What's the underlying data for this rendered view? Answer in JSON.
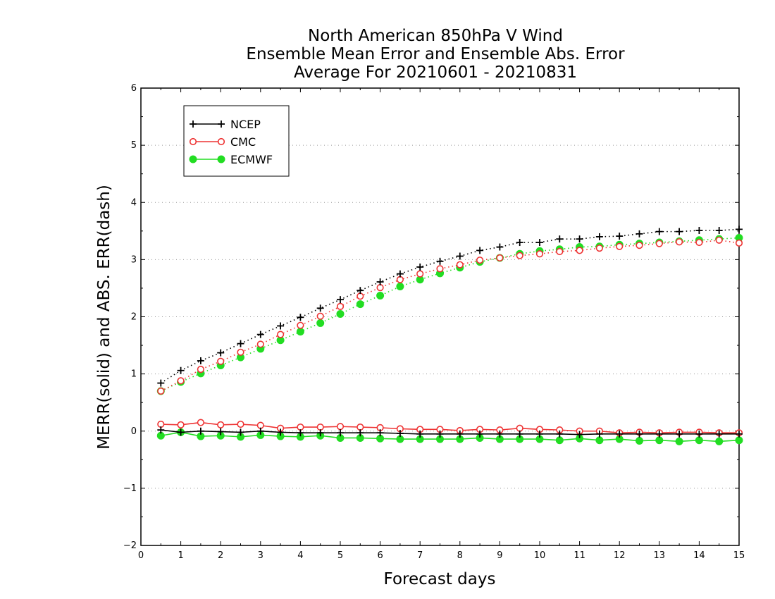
{
  "chart_data": {
    "type": "line",
    "title": [
      "North American 850hPa V Wind",
      "Ensemble Mean Error and Ensemble Abs. Error",
      "Average For 20210601 - 20210831"
    ],
    "xlabel": "Forecast days",
    "ylabel": "MERR(solid) and ABS. ERR(dash)",
    "xlim": [
      0,
      15
    ],
    "ylim": [
      -2,
      6
    ],
    "xticks": [
      "0",
      "1",
      "2",
      "3",
      "4",
      "5",
      "6",
      "7",
      "8",
      "9",
      "10",
      "11",
      "12",
      "13",
      "14",
      "15"
    ],
    "yticks": [
      "−2",
      "−1",
      "0",
      "1",
      "2",
      "3",
      "4",
      "5",
      "6"
    ],
    "grid": "horizontal dotted",
    "legend_placement": "top-left",
    "x": [
      0.5,
      1,
      1.5,
      2,
      2.5,
      3,
      3.5,
      4,
      4.5,
      5,
      5.5,
      6,
      6.5,
      7,
      7.5,
      8,
      8.5,
      9,
      9.5,
      10,
      10.5,
      11,
      11.5,
      12,
      12.5,
      13,
      13.5,
      14,
      14.5,
      15
    ],
    "series": [
      {
        "name": "NCEP",
        "color": "#000000",
        "marker": "plus",
        "style": "solid",
        "values": [
          0.02,
          -0.02,
          0.0,
          -0.01,
          -0.02,
          0.0,
          -0.02,
          -0.03,
          -0.03,
          -0.03,
          -0.03,
          -0.03,
          -0.04,
          -0.05,
          -0.05,
          -0.05,
          -0.05,
          -0.05,
          -0.05,
          -0.05,
          -0.05,
          -0.06,
          -0.05,
          -0.05,
          -0.05,
          -0.05,
          -0.05,
          -0.05,
          -0.05,
          -0.05
        ]
      },
      {
        "name": "NCEP",
        "color": "#000000",
        "marker": "plus",
        "style": "dotted",
        "values": [
          0.84,
          1.06,
          1.23,
          1.37,
          1.53,
          1.69,
          1.84,
          1.99,
          2.15,
          2.3,
          2.46,
          2.61,
          2.75,
          2.87,
          2.97,
          3.06,
          3.16,
          3.22,
          3.3,
          3.3,
          3.36,
          3.36,
          3.4,
          3.41,
          3.45,
          3.49,
          3.49,
          3.51,
          3.51,
          3.53
        ]
      },
      {
        "name": "CMC",
        "color": "#ee3333",
        "marker": "open-circle",
        "style": "solid",
        "values": [
          0.12,
          0.11,
          0.15,
          0.11,
          0.12,
          0.1,
          0.05,
          0.07,
          0.07,
          0.08,
          0.07,
          0.06,
          0.04,
          0.03,
          0.03,
          0.01,
          0.03,
          0.02,
          0.05,
          0.03,
          0.02,
          0.0,
          0.0,
          -0.03,
          -0.02,
          -0.03,
          -0.02,
          -0.02,
          -0.03,
          -0.03
        ]
      },
      {
        "name": "CMC",
        "color": "#ee3333",
        "marker": "open-circle",
        "style": "dotted",
        "values": [
          0.7,
          0.88,
          1.08,
          1.22,
          1.38,
          1.52,
          1.69,
          1.85,
          2.01,
          2.18,
          2.36,
          2.51,
          2.65,
          2.75,
          2.84,
          2.91,
          2.99,
          3.03,
          3.07,
          3.1,
          3.14,
          3.16,
          3.2,
          3.23,
          3.25,
          3.28,
          3.31,
          3.3,
          3.34,
          3.29
        ]
      },
      {
        "name": "ECMWF",
        "color": "#22dd22",
        "marker": "filled-circle",
        "style": "solid",
        "values": [
          -0.08,
          -0.02,
          -0.09,
          -0.08,
          -0.1,
          -0.07,
          -0.09,
          -0.1,
          -0.08,
          -0.12,
          -0.12,
          -0.13,
          -0.14,
          -0.14,
          -0.14,
          -0.14,
          -0.12,
          -0.14,
          -0.14,
          -0.14,
          -0.16,
          -0.13,
          -0.16,
          -0.14,
          -0.17,
          -0.16,
          -0.18,
          -0.16,
          -0.18,
          -0.16
        ]
      },
      {
        "name": "ECMWF",
        "color": "#22dd22",
        "marker": "filled-circle",
        "style": "dotted",
        "values": [
          0.7,
          0.86,
          1.01,
          1.15,
          1.29,
          1.44,
          1.59,
          1.74,
          1.89,
          2.05,
          2.22,
          2.37,
          2.53,
          2.65,
          2.76,
          2.86,
          2.96,
          3.03,
          3.1,
          3.15,
          3.18,
          3.22,
          3.23,
          3.26,
          3.28,
          3.3,
          3.32,
          3.34,
          3.36,
          3.38
        ]
      }
    ],
    "legend": [
      {
        "label": "NCEP",
        "color": "#000000",
        "marker": "plus"
      },
      {
        "label": "CMC",
        "color": "#ee3333",
        "marker": "open-circle"
      },
      {
        "label": "ECMWF",
        "color": "#22dd22",
        "marker": "filled-circle"
      }
    ]
  }
}
